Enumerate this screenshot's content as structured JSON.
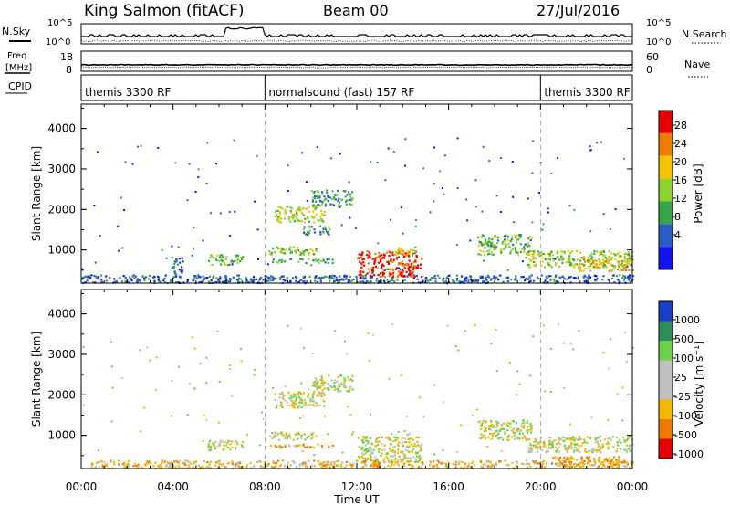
{
  "header": {
    "station": "King Salmon (fitACF)",
    "beam": "Beam 00",
    "date": "27/Jul/2016"
  },
  "top_panels": {
    "nsky_label": "N.Sky",
    "nsky_ticks": [
      "10^5",
      "10^0"
    ],
    "nsearch_label": "N.Search",
    "nsearch_ticks": [
      "10^5",
      "10^0"
    ],
    "freq_label_line1": "Freq.",
    "freq_label_line2": "[MHz]",
    "freq_ticks": [
      "18",
      "8"
    ],
    "nave_label": "Nave",
    "nave_ticks": [
      "60",
      "0"
    ],
    "cpid_label": "CPID",
    "cpid_segments": [
      {
        "label": "themis 3300 RF",
        "start_hour": 0,
        "end_hour": 8
      },
      {
        "label": "normalsound (fast) 157 RF",
        "start_hour": 8,
        "end_hour": 20
      },
      {
        "label": "themis 3300 RF",
        "start_hour": 20,
        "end_hour": 24
      }
    ]
  },
  "time_axis": {
    "label": "Time UT",
    "ticks": [
      "00:00",
      "04:00",
      "08:00",
      "12:00",
      "16:00",
      "20:00",
      "00:00"
    ]
  },
  "chart_data": [
    {
      "type": "heatmap",
      "title": "",
      "quantity": "Power",
      "colorbar_label": "Power [dB]",
      "colorbar_ticks": [
        "28",
        "24",
        "20",
        "16",
        "12",
        "8",
        "4"
      ],
      "colorbar_colors": [
        "#e60000",
        "#f07c00",
        "#f5c400",
        "#8fd32f",
        "#36a84a",
        "#2a5fc8",
        "#1313f0"
      ],
      "xlabel": "Time UT",
      "ylabel": "Slant Range [km]",
      "xlim": [
        0,
        24
      ],
      "ylim": [
        180,
        4600
      ],
      "yticks": [
        "1000",
        "2000",
        "3000",
        "4000"
      ],
      "echo_regions": [
        {
          "t0": 0.0,
          "t1": 24.0,
          "r0": 200,
          "r1": 400,
          "power_db": 6
        },
        {
          "t0": 3.9,
          "t1": 4.4,
          "r0": 400,
          "r1": 900,
          "power_db": 7
        },
        {
          "t0": 5.5,
          "t1": 7.0,
          "r0": 650,
          "r1": 900,
          "power_db": 12
        },
        {
          "t0": 8.1,
          "t1": 10.2,
          "r0": 900,
          "r1": 1100,
          "power_db": 14
        },
        {
          "t0": 8.1,
          "t1": 11.0,
          "r0": 700,
          "r1": 800,
          "power_db": 11
        },
        {
          "t0": 8.4,
          "t1": 10.6,
          "r0": 1700,
          "r1": 2100,
          "power_db": 15
        },
        {
          "t0": 10.0,
          "t1": 11.8,
          "r0": 2100,
          "r1": 2500,
          "power_db": 10
        },
        {
          "t0": 9.6,
          "t1": 10.8,
          "r0": 1400,
          "r1": 1600,
          "power_db": 9
        },
        {
          "t0": 12.0,
          "t1": 14.8,
          "r0": 350,
          "r1": 1000,
          "power_db": 25
        },
        {
          "t0": 13.6,
          "t1": 14.6,
          "r0": 900,
          "r1": 1100,
          "power_db": 16
        },
        {
          "t0": 17.2,
          "t1": 19.6,
          "r0": 900,
          "r1": 1400,
          "power_db": 12
        },
        {
          "t0": 19.4,
          "t1": 24.0,
          "r0": 600,
          "r1": 1000,
          "power_db": 14
        },
        {
          "t0": 21.6,
          "t1": 24.0,
          "r0": 500,
          "r1": 800,
          "power_db": 18
        }
      ]
    },
    {
      "type": "heatmap",
      "title": "",
      "quantity": "Velocity",
      "colorbar_label": "Velocity [m s^-1]",
      "colorbar_ticks": [
        "1000",
        "500",
        "100",
        "25",
        "-25",
        "-100",
        "-500",
        "-1000"
      ],
      "colorbar_colors": [
        "#1a3fc8",
        "#2f8f5a",
        "#6bd24a",
        "#c0c0c0",
        "#c0c0c0",
        "#f5b800",
        "#ef7a00",
        "#e60000"
      ],
      "xlabel": "Time UT",
      "ylabel": "Slant Range [km]",
      "xlim": [
        0,
        24
      ],
      "ylim": [
        180,
        4600
      ],
      "yticks": [
        "1000",
        "2000",
        "3000",
        "4000"
      ],
      "echo_regions": [
        {
          "t0": 0.0,
          "t1": 24.0,
          "r0": 200,
          "r1": 400,
          "velocity": -50
        },
        {
          "t0": 5.5,
          "t1": 7.0,
          "r0": 650,
          "r1": 900,
          "velocity": 0
        },
        {
          "t0": 8.1,
          "t1": 10.2,
          "r0": 900,
          "r1": 1100,
          "velocity": 0
        },
        {
          "t0": 8.1,
          "t1": 11.0,
          "r0": 700,
          "r1": 800,
          "velocity": -80
        },
        {
          "t0": 8.4,
          "t1": 10.6,
          "r0": 1700,
          "r1": 2100,
          "velocity": 0
        },
        {
          "t0": 10.0,
          "t1": 11.8,
          "r0": 2100,
          "r1": 2500,
          "velocity": 0
        },
        {
          "t0": 12.0,
          "t1": 14.8,
          "r0": 350,
          "r1": 1000,
          "velocity": 0
        },
        {
          "t0": 12.0,
          "t1": 13.0,
          "r0": 250,
          "r1": 450,
          "velocity": -120
        },
        {
          "t0": 17.2,
          "t1": 19.6,
          "r0": 900,
          "r1": 1400,
          "velocity": 0
        },
        {
          "t0": 19.4,
          "t1": 24.0,
          "r0": 600,
          "r1": 1000,
          "velocity": 0
        },
        {
          "t0": 20.5,
          "t1": 24.0,
          "r0": 250,
          "r1": 500,
          "velocity": -110
        }
      ]
    }
  ]
}
